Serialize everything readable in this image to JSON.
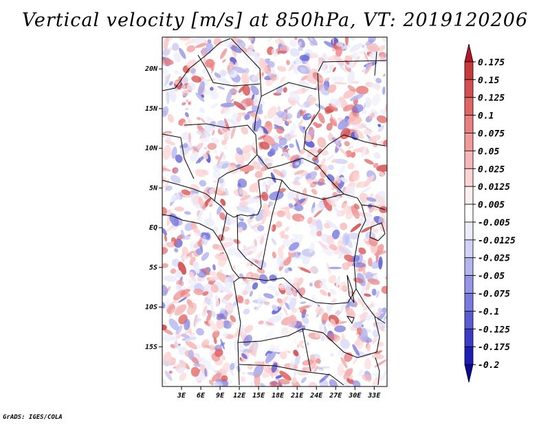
{
  "title": "Vertical velocity [m/s] at 850hPa, VT: 2019120206",
  "credit": "GrADS: IGES/COLA",
  "map": {
    "lon_range": [
      0,
      35
    ],
    "lat_range": [
      -20,
      24
    ],
    "lat_ticks": [
      {
        "value": 20,
        "label": "20N"
      },
      {
        "value": 15,
        "label": "15N"
      },
      {
        "value": 10,
        "label": "10N"
      },
      {
        "value": 5,
        "label": "5N"
      },
      {
        "value": 0,
        "label": "EQ"
      },
      {
        "value": -5,
        "label": "5S"
      },
      {
        "value": -10,
        "label": "10S"
      },
      {
        "value": -15,
        "label": "15S"
      }
    ],
    "lon_ticks": [
      {
        "value": 3,
        "label": "3E"
      },
      {
        "value": 6,
        "label": "6E"
      },
      {
        "value": 9,
        "label": "9E"
      },
      {
        "value": 12,
        "label": "12E"
      },
      {
        "value": 15,
        "label": "15E"
      },
      {
        "value": 18,
        "label": "18E"
      },
      {
        "value": 21,
        "label": "21E"
      },
      {
        "value": 24,
        "label": "24E"
      },
      {
        "value": 27,
        "label": "27E"
      },
      {
        "value": 30,
        "label": "30E"
      },
      {
        "value": 33,
        "label": "33E"
      }
    ]
  },
  "colorbar": {
    "labels": [
      "0.175",
      "0.15",
      "0.125",
      "0.1",
      "0.075",
      "0.05",
      "0.025",
      "0.0125",
      "0.005",
      "-0.005",
      "-0.0125",
      "-0.025",
      "-0.05",
      "-0.075",
      "-0.1",
      "-0.125",
      "-0.175",
      "-0.2"
    ],
    "colors": [
      "#b2182b",
      "#c53a3a",
      "#d45050",
      "#e06666",
      "#e98080",
      "#f09b9b",
      "#f6b8b8",
      "#fbd4d4",
      "#fff0f0",
      "#ffffff",
      "#ececfb",
      "#d2d2f5",
      "#b4b4ef",
      "#9696e6",
      "#7a7ade",
      "#5c5cd2",
      "#3c3cc6",
      "#1e1eb4",
      "#0a0a96"
    ]
  }
}
